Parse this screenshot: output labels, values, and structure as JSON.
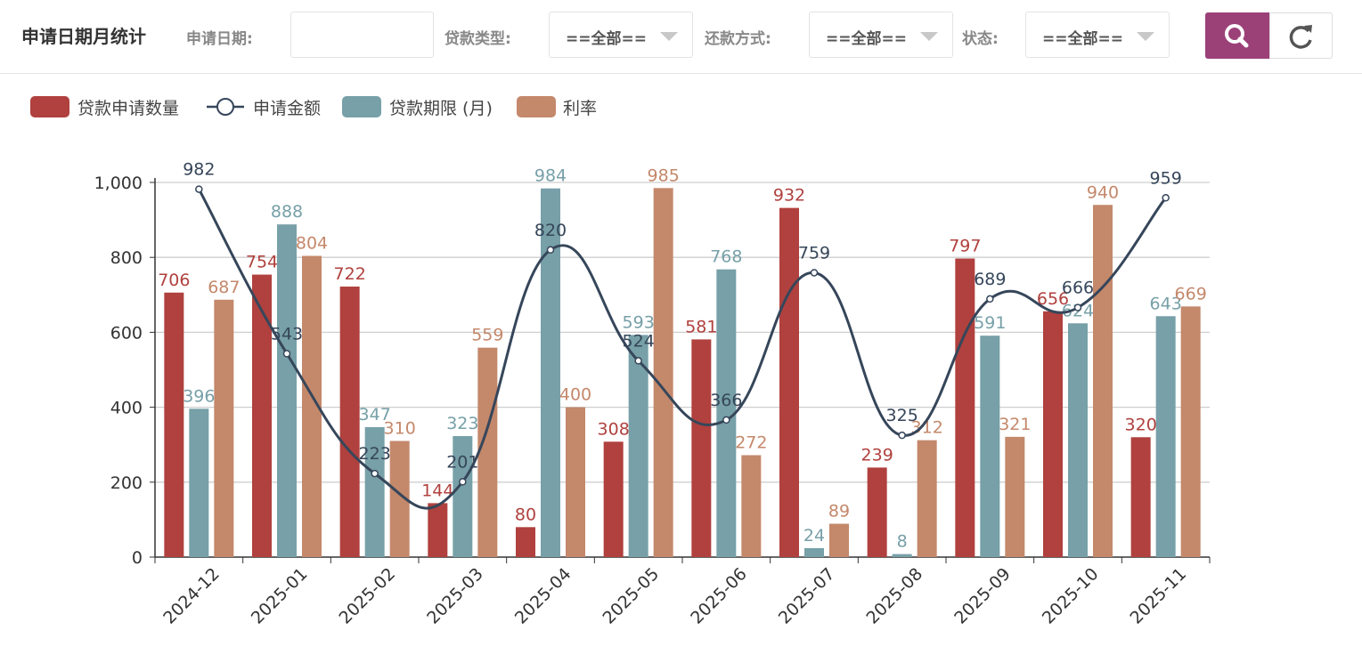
{
  "header": {
    "title": "申请日期月统计",
    "date_label": "申请日期:",
    "date_value": "",
    "loan_type_label": "贷款类型:",
    "loan_type_value": "==全部==",
    "repay_label": "还款方式:",
    "repay_value": "==全部==",
    "status_label": "状态:",
    "status_value": "==全部==",
    "search_icon": "search-icon",
    "reset_icon": "refresh-icon"
  },
  "colors": {
    "count": "#b0413e",
    "amount": "#36465a",
    "term": "#77a0a8",
    "rate": "#c4886b",
    "search_btn": "#9b4178"
  },
  "chart_data": {
    "type": "bar",
    "categories": [
      "2024-12",
      "2025-01",
      "2025-02",
      "2025-03",
      "2025-04",
      "2025-05",
      "2025-06",
      "2025-07",
      "2025-08",
      "2025-09",
      "2025-10",
      "2025-11"
    ],
    "series": [
      {
        "name": "贷款申请数量",
        "kind": "bar",
        "values": [
          706,
          754,
          722,
          144,
          80,
          308,
          581,
          932,
          239,
          797,
          656,
          320
        ]
      },
      {
        "name": "贷款期限 (月)",
        "kind": "bar",
        "values": [
          396,
          888,
          347,
          323,
          984,
          593,
          768,
          24,
          8,
          591,
          624,
          643
        ]
      },
      {
        "name": "利率",
        "kind": "bar",
        "values": [
          687,
          804,
          310,
          559,
          400,
          985,
          272,
          89,
          312,
          321,
          940,
          669
        ]
      },
      {
        "name": "申请金额",
        "kind": "line",
        "smooth": true,
        "values": [
          982,
          543,
          223,
          201,
          820,
          524,
          366,
          759,
          325,
          689,
          666,
          959
        ]
      }
    ],
    "legend": [
      "贷款申请数量",
      "申请金额",
      "贷款期限 (月)",
      "利率"
    ],
    "ylim": [
      0,
      1000
    ],
    "yticks": [
      0,
      200,
      400,
      600,
      800,
      1000
    ],
    "ytick_labels": [
      "0",
      "200",
      "400",
      "600",
      "800",
      "1,000"
    ],
    "grid": true,
    "legend_position": "top-left"
  }
}
